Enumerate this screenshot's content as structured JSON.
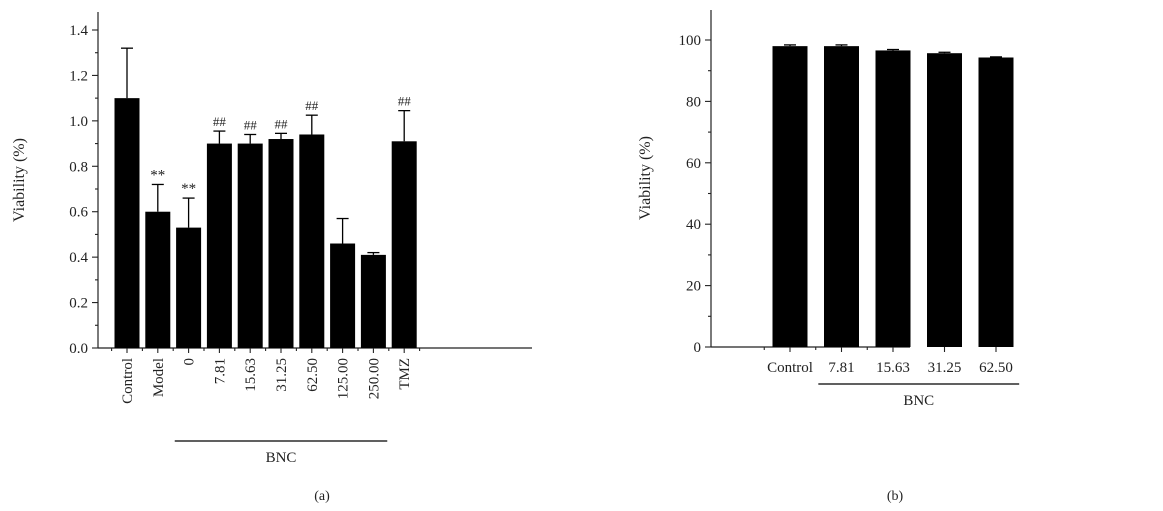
{
  "chart_data": [
    {
      "type": "bar",
      "panel_label": "(a)",
      "ylabel": "Viability (%)",
      "ylim": [
        0,
        1.4
      ],
      "yticks": [
        "0.0",
        "0.2",
        "0.4",
        "0.6",
        "0.8",
        "1.0",
        "1.2",
        "1.4"
      ],
      "categories": [
        "Control",
        "Model",
        "0",
        "7.81",
        "15.63",
        "31.25",
        "62.50",
        "125.00",
        "250.00",
        "TMZ"
      ],
      "values": [
        1.1,
        0.6,
        0.53,
        0.9,
        0.9,
        0.92,
        0.94,
        0.46,
        0.41,
        0.91
      ],
      "errors": [
        0.22,
        0.12,
        0.13,
        0.055,
        0.04,
        0.025,
        0.085,
        0.11,
        0.01,
        0.135
      ],
      "annotations": [
        "",
        "**",
        "**",
        "##",
        "##",
        "##",
        "##",
        "",
        "",
        "##"
      ],
      "group": {
        "label": "BNC",
        "from_index": 2,
        "to_index": 8
      },
      "tick_label_rotation": "vertical",
      "grid": false,
      "legend": "none"
    },
    {
      "type": "bar",
      "panel_label": "(b)",
      "ylabel": "Viability (%)",
      "ylim": [
        0,
        110
      ],
      "yticks": [
        "0",
        "20",
        "40",
        "60",
        "80",
        "100"
      ],
      "categories": [
        "Control",
        "7.81",
        "15.63",
        "31.25",
        "62.50"
      ],
      "values": [
        98.0,
        98.0,
        96.6,
        95.7,
        94.3
      ],
      "errors": [
        0.4,
        0.4,
        0.3,
        0.3,
        0.2
      ],
      "annotations": [
        "",
        "",
        "",
        "",
        ""
      ],
      "group": {
        "label": "BNC",
        "from_index": 1,
        "to_index": 4
      },
      "tick_label_rotation": "horizontal",
      "grid": false,
      "legend": "none"
    }
  ]
}
